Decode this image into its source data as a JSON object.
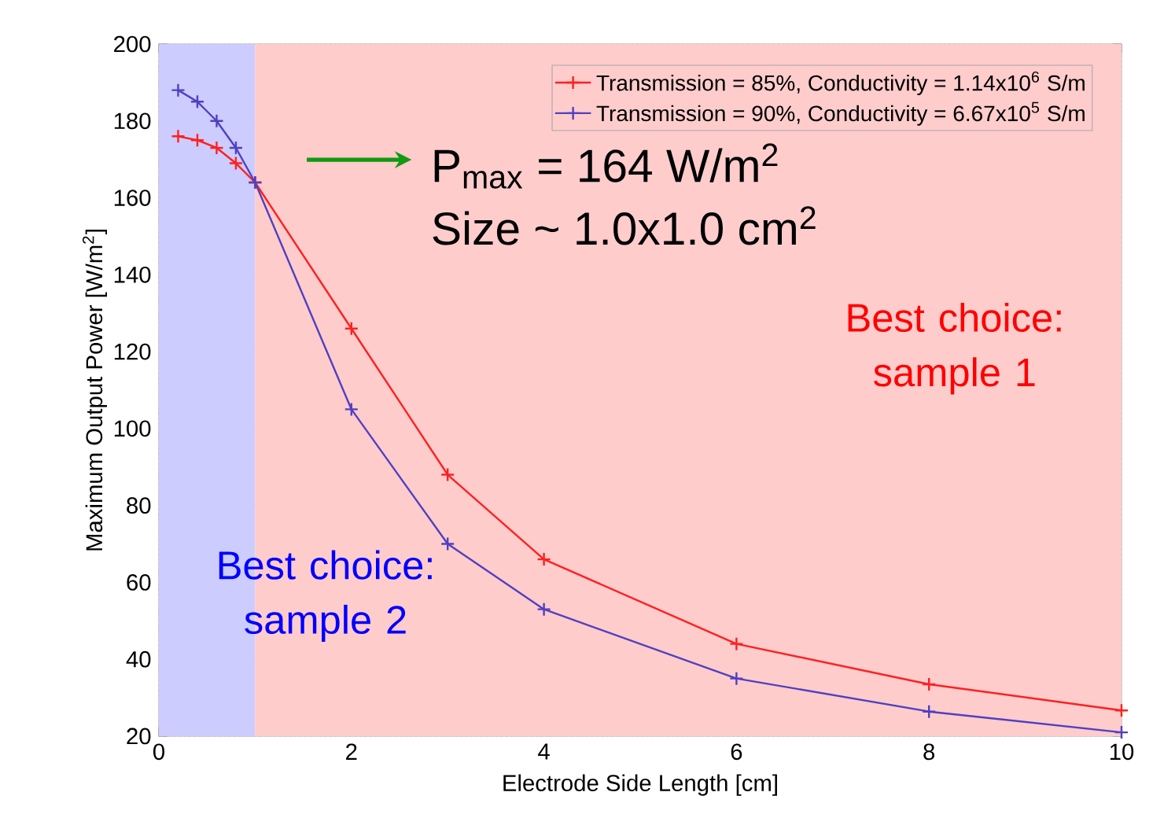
{
  "chart_data": {
    "type": "line",
    "xlabel": "Electrode Side Length [cm]",
    "ylabel": "Maximum Output Power [W/m$^{2}$]",
    "x": [
      0.2,
      0.4,
      0.6,
      0.8,
      1.0,
      2,
      3,
      4,
      6,
      8,
      10
    ],
    "series": [
      {
        "name": "Transmission = 85%, Conductivity = 1.14x10$^{6}$ S/m",
        "color": "#ff2020",
        "values": [
          176,
          175,
          173,
          169,
          164,
          126,
          88,
          66,
          44,
          33.5,
          26.7
        ]
      },
      {
        "name": "Transmission = 90%, Conductivity = 6.67x10$^{5}$ S/m",
        "color": "#5040c0",
        "values": [
          188,
          185,
          180,
          173,
          164,
          105,
          70,
          53,
          35,
          26.4,
          21
        ]
      }
    ],
    "xlim": [
      0,
      10
    ],
    "ylim": [
      20,
      200
    ],
    "xticks": [
      0,
      2,
      4,
      6,
      8,
      10
    ],
    "yticks": [
      20,
      40,
      60,
      80,
      100,
      120,
      140,
      160,
      180,
      200
    ],
    "bands": [
      {
        "axis": "x",
        "from": 0,
        "to": 1,
        "label": "Best choice: sample 2",
        "color": "#ccccff"
      },
      {
        "axis": "x",
        "from": 1,
        "to": 10,
        "label": "Best choice: sample 1",
        "color": "#ffcccc"
      }
    ],
    "annotations": [
      "P$_{max}$ = 164 W/m$^{2}$",
      "Size ~ 1.0x1.0 cm$^{2}$"
    ],
    "grid": true,
    "legend": "top right",
    "marker": "cross",
    "line_style": "solid"
  }
}
